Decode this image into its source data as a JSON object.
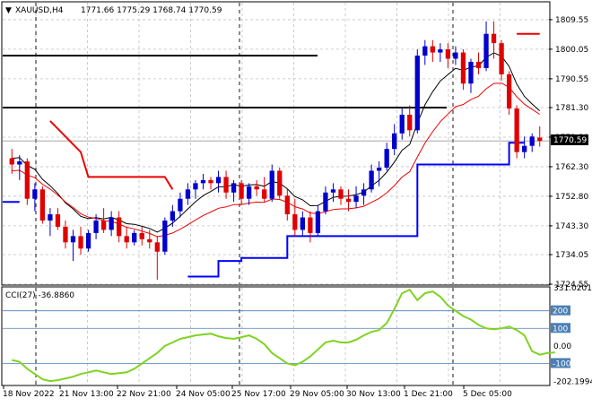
{
  "chart_data": [
    {
      "type": "candlestick",
      "title": "XAUUSD,H4",
      "ohlc_readout": "1771.66 1775.29 1768.74 1770.59",
      "last_price": 1770.59,
      "ylim": [
        1724.55,
        1815.0
      ],
      "y_ticks": [
        1809.55,
        1800.05,
        1790.55,
        1781.3,
        1771.8,
        1762.3,
        1752.8,
        1743.3,
        1734.05,
        1724.55
      ],
      "y_tick_labels": [
        "1809.55",
        "1800.05",
        "1790.55",
        "1781.30",
        "1771.80",
        "1762.30",
        "1752.80",
        "1743.30",
        "1734.05",
        "1724.55"
      ],
      "last_price_label": "1770.59",
      "x_labels": [
        "18 Nov 2022",
        "21 Nov 13:00",
        "22 Nov 21:00",
        "24 Nov 05:00",
        "25 Nov 17:00",
        "29 Nov 05:00",
        "30 Nov 13:00",
        "1 Dec 21:00",
        "5 Dec 05:00"
      ],
      "candles": [
        [
          1765,
          1768,
          1760,
          1763
        ],
        [
          1763,
          1766,
          1758,
          1764
        ],
        [
          1764,
          1765,
          1750,
          1752
        ],
        [
          1752,
          1757,
          1748,
          1755
        ],
        [
          1755,
          1756,
          1744,
          1745
        ],
        [
          1745,
          1749,
          1740,
          1747
        ],
        [
          1747,
          1749,
          1742,
          1743
        ],
        [
          1743,
          1745,
          1736,
          1738
        ],
        [
          1738,
          1742,
          1732,
          1740
        ],
        [
          1740,
          1743,
          1734,
          1736
        ],
        [
          1736,
          1742,
          1735,
          1741
        ],
        [
          1741,
          1747,
          1739,
          1745
        ],
        [
          1745,
          1749,
          1741,
          1742
        ],
        [
          1742,
          1748,
          1740,
          1746
        ],
        [
          1746,
          1748,
          1738,
          1740
        ],
        [
          1740,
          1743,
          1736,
          1738
        ],
        [
          1738,
          1742,
          1737,
          1741
        ],
        [
          1741,
          1743,
          1737,
          1739
        ],
        [
          1739,
          1742,
          1736,
          1738
        ],
        [
          1738,
          1740,
          1726,
          1735
        ],
        [
          1735,
          1746,
          1734,
          1745
        ],
        [
          1745,
          1750,
          1743,
          1748
        ],
        [
          1748,
          1754,
          1746,
          1752
        ],
        [
          1752,
          1757,
          1750,
          1755
        ],
        [
          1755,
          1758,
          1752,
          1757
        ],
        [
          1757,
          1760,
          1755,
          1758
        ],
        [
          1758,
          1759,
          1755,
          1757
        ],
        [
          1757,
          1761,
          1754,
          1759
        ],
        [
          1759,
          1761,
          1752,
          1754
        ],
        [
          1754,
          1758,
          1751,
          1757
        ],
        [
          1757,
          1758,
          1750,
          1752
        ],
        [
          1752,
          1757,
          1750,
          1756
        ],
        [
          1756,
          1758,
          1753,
          1755
        ],
        [
          1755,
          1759,
          1751,
          1752
        ],
        [
          1752,
          1763,
          1751,
          1761
        ],
        [
          1761,
          1762,
          1752,
          1753
        ],
        [
          1753,
          1755,
          1745,
          1747
        ],
        [
          1747,
          1752,
          1740,
          1742
        ],
        [
          1742,
          1748,
          1740,
          1746
        ],
        [
          1746,
          1748,
          1738,
          1741
        ],
        [
          1741,
          1750,
          1740,
          1748
        ],
        [
          1748,
          1756,
          1747,
          1754
        ],
        [
          1754,
          1757,
          1751,
          1755
        ],
        [
          1755,
          1756,
          1750,
          1752
        ],
        [
          1752,
          1755,
          1748,
          1751
        ],
        [
          1751,
          1756,
          1749,
          1753
        ],
        [
          1753,
          1757,
          1750,
          1755
        ],
        [
          1755,
          1763,
          1754,
          1761
        ],
        [
          1761,
          1764,
          1756,
          1762
        ],
        [
          1762,
          1770,
          1761,
          1768
        ],
        [
          1768,
          1776,
          1766,
          1773
        ],
        [
          1773,
          1781,
          1771,
          1779
        ],
        [
          1779,
          1782,
          1772,
          1774
        ],
        [
          1774,
          1800,
          1773,
          1798
        ],
        [
          1798,
          1803,
          1795,
          1801
        ],
        [
          1801,
          1803,
          1796,
          1799
        ],
        [
          1799,
          1802,
          1796,
          1800
        ],
        [
          1800,
          1802,
          1794,
          1797
        ],
        [
          1797,
          1801,
          1795,
          1799
        ],
        [
          1799,
          1800,
          1787,
          1789
        ],
        [
          1789,
          1797,
          1786,
          1796
        ],
        [
          1796,
          1799,
          1792,
          1794
        ],
        [
          1794,
          1809,
          1793,
          1805
        ],
        [
          1805,
          1809,
          1797,
          1802
        ],
        [
          1802,
          1803,
          1790,
          1792
        ],
        [
          1792,
          1793,
          1779,
          1781
        ],
        [
          1781,
          1782,
          1765,
          1767
        ],
        [
          1767,
          1772,
          1765,
          1769
        ],
        [
          1769,
          1773,
          1767,
          1772
        ],
        [
          1771.66,
          1775.29,
          1768.74,
          1770.59
        ]
      ],
      "horizontal_levels": [
        1798,
        1781.3
      ],
      "overlays": [
        "EMA black",
        "EMA red",
        "stop-trail red",
        "stop-trail blue"
      ]
    },
    {
      "type": "line",
      "title": "CCI(27) -36.8860",
      "ylim": [
        -220,
        331.0201
      ],
      "y_ticks": [
        331.0201,
        200,
        100,
        0.0,
        -100,
        -202.1994
      ],
      "y_tick_labels": [
        "331.0201",
        "200",
        "100",
        "0.00",
        "-100",
        "-202.1994"
      ],
      "reference_levels": [
        200,
        100,
        -100
      ],
      "series": [
        {
          "name": "CCI(27)",
          "color": "#7fd321",
          "values": [
            -80,
            -90,
            -130,
            -160,
            -190,
            -200,
            -195,
            -185,
            -175,
            -160,
            -150,
            -140,
            -150,
            -160,
            -155,
            -150,
            -130,
            -100,
            -70,
            -40,
            0,
            20,
            40,
            50,
            60,
            65,
            70,
            55,
            45,
            40,
            50,
            60,
            40,
            10,
            -40,
            -70,
            -100,
            -110,
            -90,
            -60,
            -20,
            20,
            30,
            20,
            20,
            35,
            60,
            80,
            90,
            130,
            210,
            300,
            320,
            260,
            300,
            310,
            280,
            230,
            200,
            170,
            150,
            120,
            100,
            95,
            100,
            110,
            90,
            60,
            -30,
            -50,
            -40,
            -37
          ]
        }
      ]
    }
  ]
}
